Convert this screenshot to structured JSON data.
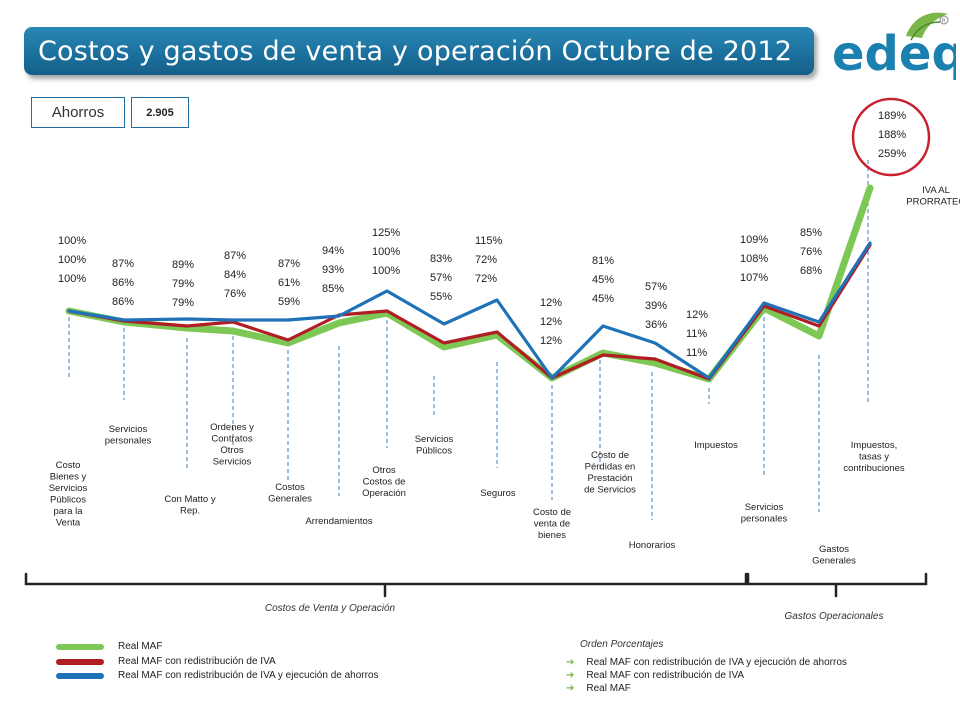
{
  "header": {
    "title": "Costos y gastos de venta y operación Octubre de 2012",
    "brand": "edeq"
  },
  "savings": {
    "label": "Ahorros",
    "value": "2.905"
  },
  "colors": {
    "green": "#7dc855",
    "red": "#b01e23",
    "blue": "#1f72b8",
    "accent": "#1b6f9c",
    "circle": "#c8202f"
  },
  "chart_data": {
    "type": "line",
    "title": "Costos y gastos de venta y operación Octubre de 2012",
    "categories": [
      "Costo Bienes y Servicios Públicos para la Venta",
      "Servicios personales",
      "Con Matto y Rep.",
      "Ordenes y Contratos Otros Servicios",
      "Costos Generales",
      "Arrendamientos",
      "Otros Costos de Operación",
      "Servicios Públicos",
      "Seguros",
      "Costo de venta de bienes",
      "Costo de Pérdidas en Prestación de Servicios",
      "Honorarios",
      "Impuestos",
      "Servicios personales",
      "Gastos Generales",
      "Impuestos, tasas y contribuciones",
      "IVA AL PRORRATEO"
    ],
    "category_label_lines": [
      [
        "Costo",
        "Bienes y",
        "Servicios",
        "Públicos",
        "para la",
        "Venta"
      ],
      [
        "Servicios",
        "personales"
      ],
      [
        "Con Matto y",
        "Rep."
      ],
      [
        "Ordenes y",
        "Contratos",
        "Otros",
        "Servicios"
      ],
      [
        "Costos",
        "Generales"
      ],
      [
        "Arrendamientos"
      ],
      [
        "Otros",
        "Costos de",
        "Operación"
      ],
      [
        "Servicios",
        "Públicos"
      ],
      [
        "Seguros"
      ],
      [
        "Costo de",
        "venta de",
        "bienes"
      ],
      [
        "Costo de",
        "Pérdidas en",
        "Prestación",
        "de Servicios"
      ],
      [
        "Honorarios"
      ],
      [
        "Impuestos"
      ],
      [
        "Servicios",
        "personales"
      ],
      [
        "Gastos",
        "Generales"
      ],
      [
        "Impuestos,",
        "tasas y",
        "contribuciones"
      ],
      [
        "IVA AL",
        "PRORRATEO"
      ]
    ],
    "series": [
      {
        "name": "Real MAF con redistribución de IVA y ejecución de ahorros",
        "color": "#1f72b8",
        "values": [
          100,
          87,
          89,
          87,
          87,
          94,
          125,
          83,
          115,
          12,
          81,
          57,
          12,
          109,
          85,
          null,
          189
        ]
      },
      {
        "name": "Real MAF con redistribución de IVA",
        "color": "#b01e23",
        "values": [
          100,
          86,
          79,
          84,
          61,
          93,
          100,
          57,
          72,
          12,
          45,
          39,
          11,
          108,
          76,
          null,
          188
        ]
      },
      {
        "name": "Real MAF",
        "color": "#7dc855",
        "values": [
          100,
          86,
          79,
          76,
          59,
          85,
          100,
          55,
          72,
          12,
          45,
          36,
          11,
          107,
          68,
          null,
          259
        ]
      }
    ],
    "point_labels": [
      [
        "100%",
        "100%",
        "100%"
      ],
      [
        "87%",
        "86%",
        "86%"
      ],
      [
        "89%",
        "79%",
        "79%"
      ],
      [
        "87%",
        "84%",
        "76%"
      ],
      [
        "87%",
        "61%",
        "59%"
      ],
      [
        "94%",
        "93%",
        "85%"
      ],
      [
        "125%",
        "100%",
        "100%"
      ],
      [
        "83%",
        "57%",
        "55%"
      ],
      [
        "115%",
        "72%",
        "72%"
      ],
      [
        "12%",
        "12%",
        "12%"
      ],
      [
        "81%",
        "45%",
        "45%"
      ],
      [
        "57%",
        "39%",
        "36%"
      ],
      [
        "12%",
        "11%",
        "11%"
      ],
      [
        "109%",
        "108%",
        "107%"
      ],
      [
        "85%",
        "76%",
        "68%"
      ],
      [],
      [
        "189%",
        "188%",
        "259%"
      ]
    ],
    "groups": [
      {
        "label": "Costos de Venta y Operación"
      },
      {
        "label": "Gastos Operacionales"
      }
    ],
    "legend": [
      {
        "label": "Real MAF",
        "color": "#7dc855"
      },
      {
        "label": "Real MAF con redistribución de IVA",
        "color": "#b01e23"
      },
      {
        "label": "Real MAF con redistribución de IVA y ejecución de ahorros",
        "color": "#1f72b8"
      }
    ],
    "order": {
      "title": "Orden Porcentajes",
      "items": [
        "Real MAF con redistribución de IVA y ejecución de ahorros",
        "Real MAF con redistribución de IVA",
        "Real MAF"
      ]
    }
  }
}
